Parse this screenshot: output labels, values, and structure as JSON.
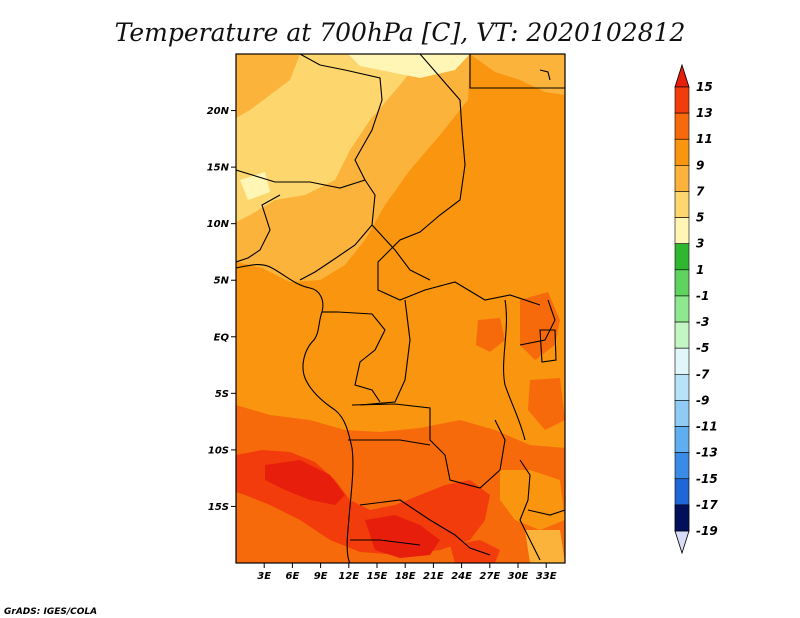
{
  "title": "Temperature at 700hPa [C], VT: 2020102812",
  "credit": "GrADS: IGES/COLA",
  "map": {
    "lat_labels": [
      {
        "lat": 20,
        "label": "20N"
      },
      {
        "lat": 15,
        "label": "15N"
      },
      {
        "lat": 10,
        "label": "10N"
      },
      {
        "lat": 5,
        "label": "5N"
      },
      {
        "lat": 0,
        "label": "EQ"
      },
      {
        "lat": -5,
        "label": "5S"
      },
      {
        "lat": -10,
        "label": "10S"
      },
      {
        "lat": -15,
        "label": "15S"
      }
    ],
    "lon_labels": [
      {
        "lon": 3,
        "label": "3E"
      },
      {
        "lon": 6,
        "label": "6E"
      },
      {
        "lon": 9,
        "label": "9E"
      },
      {
        "lon": 12,
        "label": "12E"
      },
      {
        "lon": 15,
        "label": "15E"
      },
      {
        "lon": 18,
        "label": "18E"
      },
      {
        "lon": 21,
        "label": "21E"
      },
      {
        "lon": 24,
        "label": "24E"
      },
      {
        "lon": 27,
        "label": "27E"
      },
      {
        "lon": 30,
        "label": "30E"
      },
      {
        "lon": 33,
        "label": "33E"
      }
    ],
    "lon_range": [
      0,
      35
    ],
    "lat_range": [
      -20,
      25
    ]
  },
  "colorbar": {
    "levels": [
      {
        "label": "15",
        "color": "#e81e0c"
      },
      {
        "label": "13",
        "color": "#f23c0c"
      },
      {
        "label": "11",
        "color": "#f76a0b"
      },
      {
        "label": "9",
        "color": "#f9950e"
      },
      {
        "label": "7",
        "color": "#fbb33c"
      },
      {
        "label": "5",
        "color": "#fdd76e"
      },
      {
        "label": "3",
        "color": "#fff5b4"
      },
      {
        "label": "1",
        "color": "#2fb72f"
      },
      {
        "label": "-1",
        "color": "#5ed35e"
      },
      {
        "label": "-3",
        "color": "#8fe88f"
      },
      {
        "label": "-5",
        "color": "#c4f5c4"
      },
      {
        "label": "-7",
        "color": "#e0f6f8"
      },
      {
        "label": "-9",
        "color": "#b8e2f8"
      },
      {
        "label": "-11",
        "color": "#8fcbf5"
      },
      {
        "label": "-13",
        "color": "#5eaef0"
      },
      {
        "label": "-15",
        "color": "#3a8be6"
      },
      {
        "label": "-17",
        "color": "#1f66d6"
      },
      {
        "label": "-19",
        "color": "#0e3fb8"
      }
    ],
    "bottom_colors": [
      "#0a1f8f",
      "#00105a",
      "#d9dcf7"
    ]
  }
}
